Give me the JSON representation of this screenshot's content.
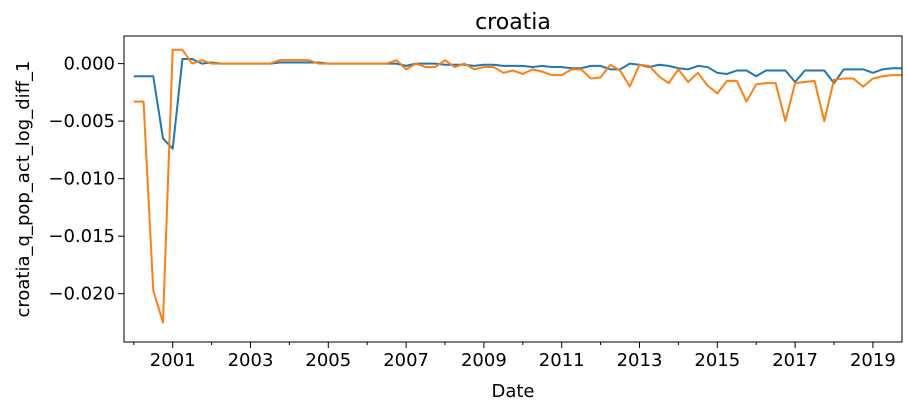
{
  "chart_data": {
    "type": "line",
    "title": "croatia",
    "xlabel": "Date",
    "ylabel": "croatia_q_pop_act_log_diff_1",
    "xlim": [
      "1999-10-01",
      "2019-10-01"
    ],
    "ylim": [
      -0.0242,
      0.0024
    ],
    "x_major_ticks": [
      "2001",
      "2003",
      "2005",
      "2007",
      "2009",
      "2011",
      "2013",
      "2015",
      "2017",
      "2019"
    ],
    "y_ticks": [
      0.0,
      -0.005,
      -0.01,
      -0.015,
      -0.02
    ],
    "y_tick_labels": [
      "0.000",
      "−0.005",
      "−0.010",
      "−0.015",
      "−0.020"
    ],
    "grid": false,
    "legend": "none",
    "x": [
      "2000Q1",
      "2000Q2",
      "2000Q3",
      "2000Q4",
      "2001Q1",
      "2001Q2",
      "2001Q3",
      "2001Q4",
      "2002Q1",
      "2002Q2",
      "2002Q3",
      "2002Q4",
      "2003Q1",
      "2003Q2",
      "2003Q3",
      "2003Q4",
      "2004Q1",
      "2004Q2",
      "2004Q3",
      "2004Q4",
      "2005Q1",
      "2005Q2",
      "2005Q3",
      "2005Q4",
      "2006Q1",
      "2006Q2",
      "2006Q3",
      "2006Q4",
      "2007Q1",
      "2007Q2",
      "2007Q3",
      "2007Q4",
      "2008Q1",
      "2008Q2",
      "2008Q3",
      "2008Q4",
      "2009Q1",
      "2009Q2",
      "2009Q3",
      "2009Q4",
      "2010Q1",
      "2010Q2",
      "2010Q3",
      "2010Q4",
      "2011Q1",
      "2011Q2",
      "2011Q3",
      "2011Q4",
      "2012Q1",
      "2012Q2",
      "2012Q3",
      "2012Q4",
      "2013Q1",
      "2013Q2",
      "2013Q3",
      "2013Q4",
      "2014Q1",
      "2014Q2",
      "2014Q3",
      "2014Q4",
      "2015Q1",
      "2015Q2",
      "2015Q3",
      "2015Q4",
      "2016Q1",
      "2016Q2",
      "2016Q3",
      "2016Q4",
      "2017Q1",
      "2017Q2",
      "2017Q3",
      "2017Q4",
      "2018Q1",
      "2018Q2",
      "2018Q3",
      "2018Q4",
      "2019Q1",
      "2019Q2",
      "2019Q3",
      "2019Q4"
    ],
    "series": [
      {
        "color": "#1f77b4",
        "values": [
          -0.0011,
          -0.0011,
          -0.0011,
          -0.0065,
          -0.0074,
          0.0004,
          0.0004,
          0.0,
          0.0001,
          0.0,
          0.0,
          0.0,
          0.0,
          0.0,
          0.0,
          0.0001,
          0.0001,
          0.0001,
          0.0001,
          0.0001,
          0.0,
          0.0,
          0.0,
          0.0,
          0.0,
          0.0,
          0.0,
          0.0,
          -0.0002,
          0.0,
          0.0,
          0.0,
          -0.0001,
          -0.0001,
          -0.0001,
          -0.0002,
          -0.0001,
          -0.0001,
          -0.0002,
          -0.0002,
          -0.0002,
          -0.0003,
          -0.0002,
          -0.0003,
          -0.0003,
          -0.0004,
          -0.0004,
          -0.0002,
          -0.0002,
          -0.0005,
          -0.0005,
          0.0,
          -0.0001,
          -0.0003,
          -0.0001,
          -0.0002,
          -0.0004,
          -0.0005,
          -0.0002,
          -0.0003,
          -0.0008,
          -0.0009,
          -0.0006,
          -0.0006,
          -0.0011,
          -0.0006,
          -0.0006,
          -0.0006,
          -0.0016,
          -0.0006,
          -0.0006,
          -0.0006,
          -0.0017,
          -0.0005,
          -0.0005,
          -0.0005,
          -0.0008,
          -0.0005,
          -0.0004,
          -0.0004
        ]
      },
      {
        "color": "#ff7f0e",
        "values": [
          -0.0033,
          -0.0033,
          -0.0197,
          -0.0225,
          0.0012,
          0.0012,
          0.0,
          0.0003,
          0.0,
          0.0,
          0.0,
          0.0,
          0.0,
          0.0,
          0.0,
          0.0003,
          0.0003,
          0.0003,
          0.0003,
          0.0,
          0.0,
          0.0,
          0.0,
          0.0,
          0.0,
          0.0,
          0.0,
          0.0003,
          -0.0005,
          0.0,
          -0.0003,
          -0.0003,
          0.0003,
          -0.0003,
          0.0,
          -0.0005,
          -0.0003,
          -0.0003,
          -0.0008,
          -0.0006,
          -0.0009,
          -0.0005,
          -0.0007,
          -0.001,
          -0.001,
          -0.0005,
          -0.0005,
          -0.0013,
          -0.0012,
          -0.0001,
          -0.0006,
          -0.002,
          -0.0001,
          -0.0002,
          -0.0011,
          -0.0017,
          -0.0005,
          -0.0016,
          -0.0008,
          -0.0019,
          -0.0026,
          -0.0015,
          -0.0015,
          -0.0033,
          -0.0018,
          -0.0017,
          -0.0017,
          -0.005,
          -0.0017,
          -0.0016,
          -0.0015,
          -0.005,
          -0.0014,
          -0.0013,
          -0.0013,
          -0.002,
          -0.0013,
          -0.0011,
          -0.001,
          -0.001
        ]
      }
    ]
  }
}
